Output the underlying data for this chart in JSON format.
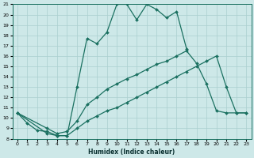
{
  "xlabel": "Humidex (Indice chaleur)",
  "xlim": [
    -0.5,
    23.5
  ],
  "ylim": [
    8,
    21
  ],
  "xticks": [
    0,
    1,
    2,
    3,
    4,
    5,
    6,
    7,
    8,
    9,
    10,
    11,
    12,
    13,
    14,
    15,
    16,
    17,
    18,
    19,
    20,
    21,
    22,
    23
  ],
  "yticks": [
    8,
    9,
    10,
    11,
    12,
    13,
    14,
    15,
    16,
    17,
    18,
    19,
    20,
    21
  ],
  "bg_color": "#cde8e8",
  "grid_color": "#aacfcf",
  "line_color": "#1a7060",
  "line_width": 0.9,
  "marker": "D",
  "marker_size": 2.0,
  "series": [
    {
      "x": [
        0,
        1,
        2,
        3,
        4,
        5,
        6,
        7,
        8,
        9,
        10,
        11,
        12,
        13,
        14,
        15,
        16,
        17
      ],
      "y": [
        10.5,
        9.5,
        8.8,
        8.7,
        8.3,
        8.3,
        13.0,
        17.7,
        17.2,
        18.3,
        21.0,
        21.0,
        19.5,
        21.0,
        20.5,
        19.7,
        20.3,
        16.7
      ]
    },
    {
      "x": [
        0,
        3,
        4,
        5,
        6,
        7,
        8,
        9,
        10,
        11,
        12,
        13,
        14,
        15,
        16,
        17,
        18,
        19,
        20,
        21,
        22,
        23
      ],
      "y": [
        10.5,
        9.0,
        8.5,
        8.7,
        9.7,
        11.3,
        12.0,
        12.8,
        13.3,
        13.8,
        14.2,
        14.7,
        15.2,
        15.5,
        16.0,
        16.5,
        15.3,
        13.3,
        10.7,
        10.5,
        10.5,
        10.5
      ]
    },
    {
      "x": [
        0,
        3,
        4,
        5,
        6,
        7,
        8,
        9,
        10,
        11,
        12,
        13,
        14,
        15,
        16,
        17,
        18,
        19,
        20,
        21,
        22,
        23
      ],
      "y": [
        10.5,
        8.5,
        8.3,
        8.3,
        9.0,
        9.7,
        10.2,
        10.7,
        11.0,
        11.5,
        12.0,
        12.5,
        13.0,
        13.5,
        14.0,
        14.5,
        15.0,
        15.5,
        16.0,
        13.0,
        10.5,
        10.5
      ]
    }
  ]
}
